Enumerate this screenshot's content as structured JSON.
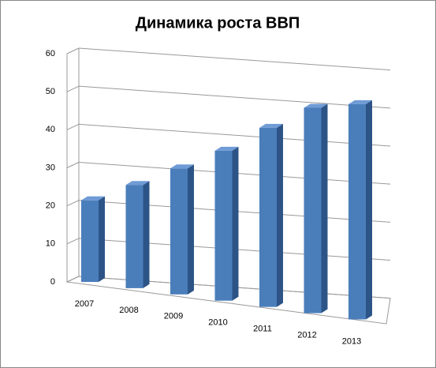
{
  "chart_data": {
    "type": "bar3d",
    "title": "Динамика роста ВВП",
    "categories": [
      "2007",
      "2008",
      "2009",
      "2010",
      "2011",
      "2012",
      "2013"
    ],
    "values": [
      22,
      27,
      32,
      37,
      43,
      48,
      49
    ],
    "color": "#4a7ebb",
    "ylim": [
      0,
      60
    ],
    "yticks": [
      0,
      10,
      20,
      30,
      40,
      50,
      60
    ],
    "grid": true
  }
}
